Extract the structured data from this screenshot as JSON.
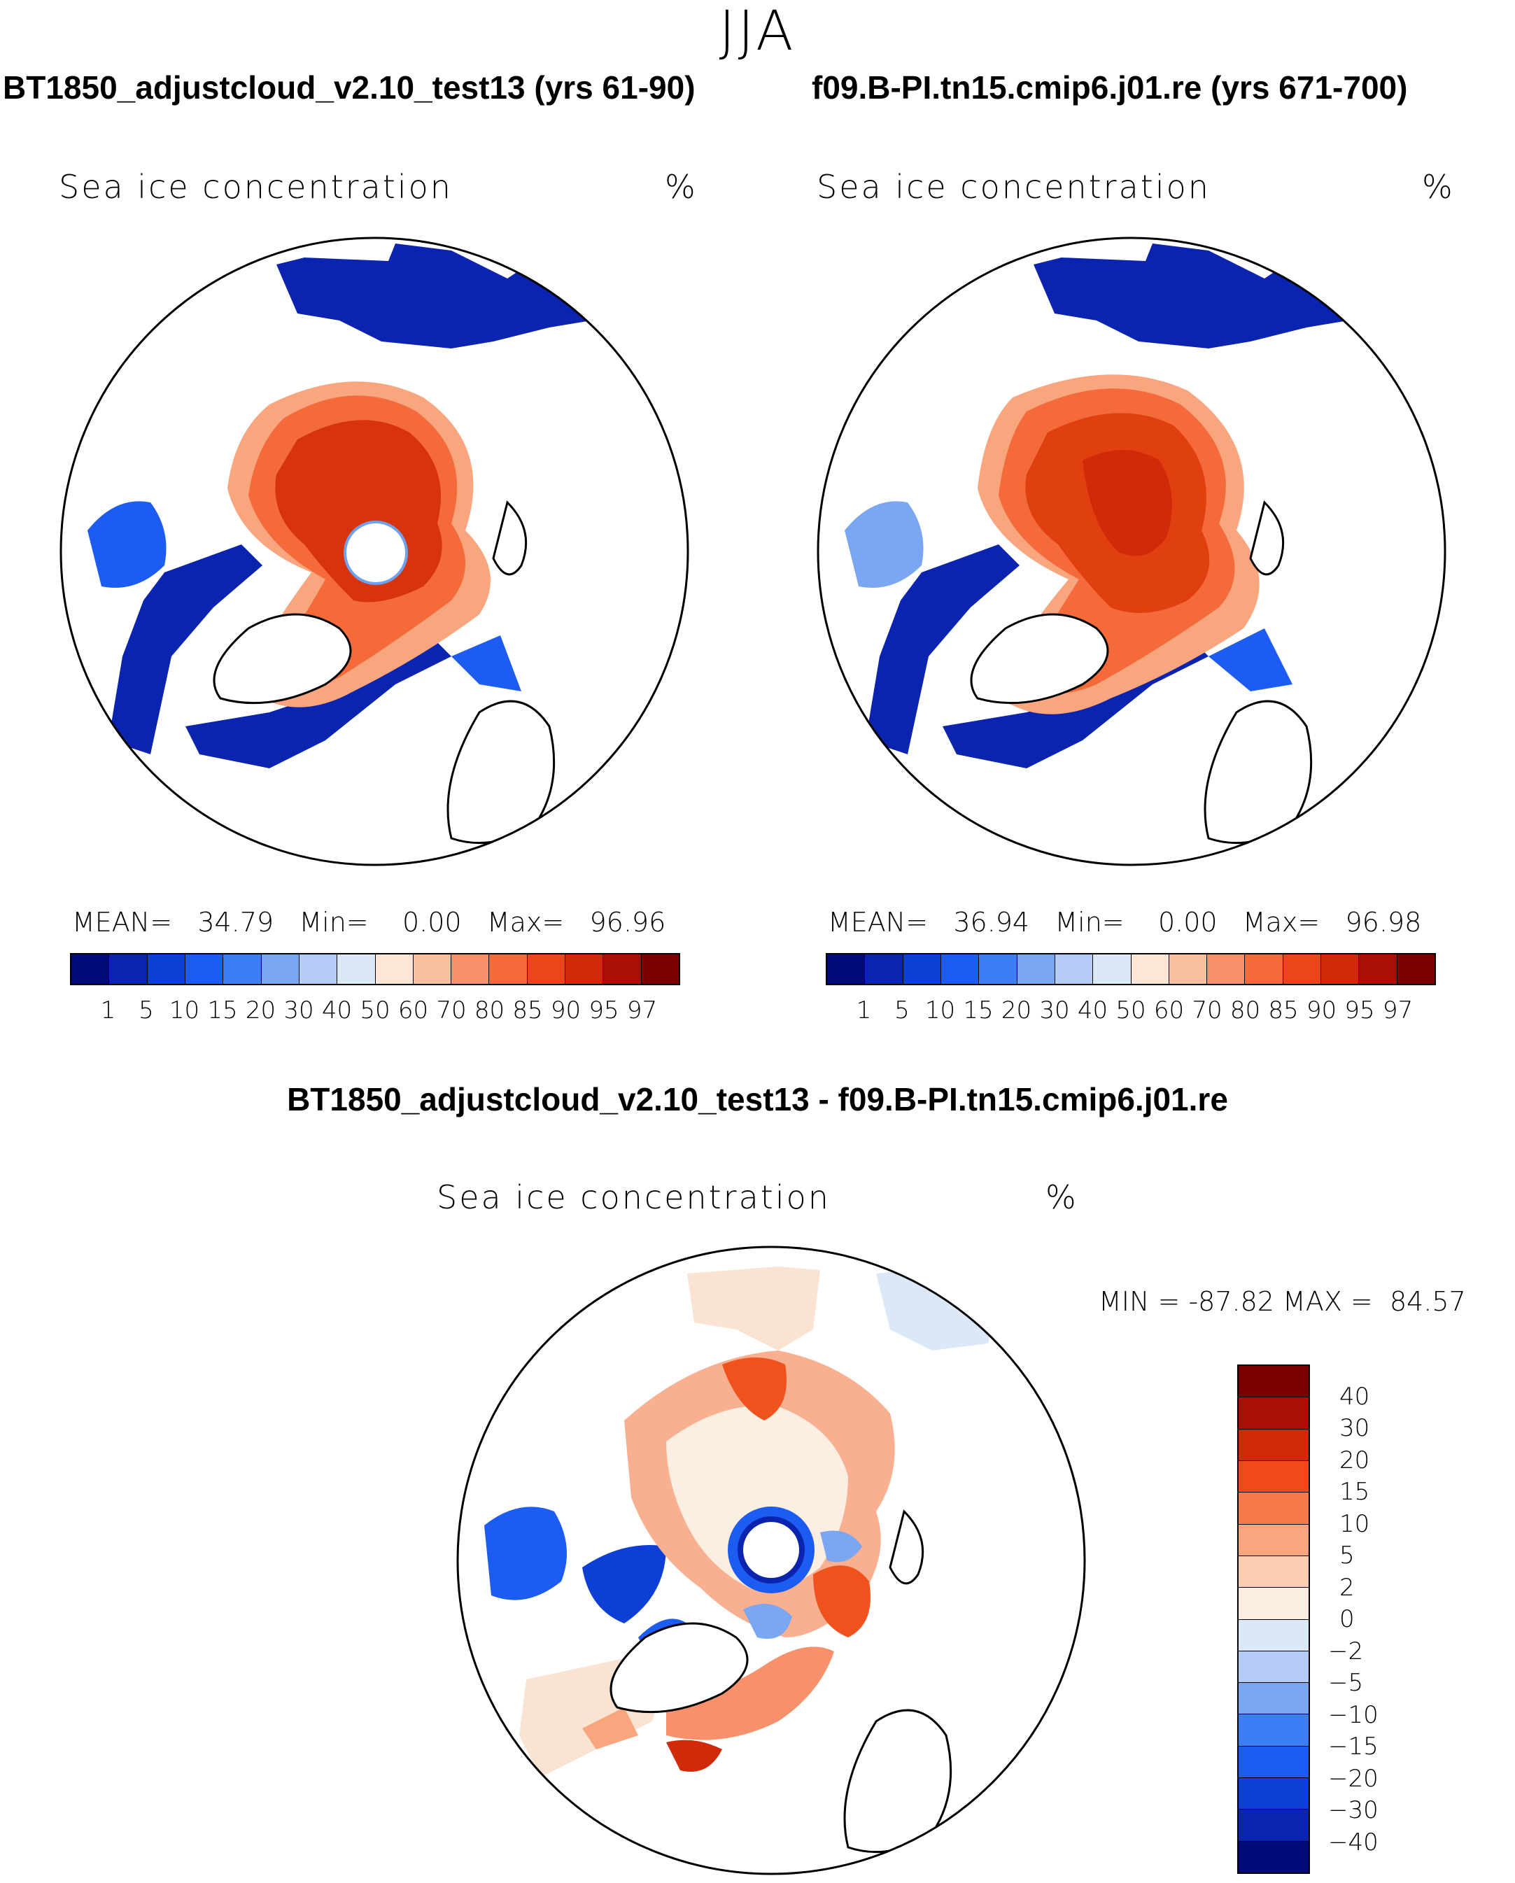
{
  "season": "JJA",
  "panels": [
    {
      "title": "BT1850_adjustcloud_v2.10_test13 (yrs 61-90)",
      "variable": "Sea ice concentration",
      "units": "%",
      "mean_label": "MEAN=",
      "mean": "34.79",
      "min_label": "Min=",
      "min": "0.00",
      "max_label": "Max=",
      "max": "96.96"
    },
    {
      "title": "f09.B-PI.tn15.cmip6.j01.re (yrs 671-700)",
      "variable": "Sea ice concentration",
      "units": "%",
      "mean_label": "MEAN=",
      "mean": "36.94",
      "min_label": "Min=",
      "min": "0.00",
      "max_label": "Max=",
      "max": "96.98"
    }
  ],
  "diff": {
    "title": "BT1850_adjustcloud_v2.10_test13 - f09.B-PI.tn15.cmip6.j01.re",
    "variable": "Sea ice concentration",
    "units": "%",
    "min_label": "MIN =",
    "min": "-87.82",
    "max_label": "MAX =",
    "max": "84.57"
  },
  "chart_data": [
    {
      "type": "heatmap",
      "projection": "north polar stereographic",
      "title": "BT1850_adjustcloud_v2.10_test13 (yrs 61-90)",
      "colorbar_levels": [
        "1",
        "5",
        "10",
        "15",
        "20",
        "30",
        "40",
        "50",
        "60",
        "70",
        "80",
        "85",
        "90",
        "95",
        "97"
      ],
      "colors": [
        "#000a7a",
        "#0a24b0",
        "#0d3fd6",
        "#1c5cf0",
        "#3d7ef5",
        "#7aa6f2",
        "#b5ccf6",
        "#dbe8f8",
        "#fde6d6",
        "#f9c0a0",
        "#f6916c",
        "#f46a3a",
        "#e9461c",
        "#d02a0a",
        "#a90f04",
        "#7a0000"
      ],
      "mean": 34.79,
      "min": 0.0,
      "max": 96.96
    },
    {
      "type": "heatmap",
      "projection": "north polar stereographic",
      "title": "f09.B-PI.tn15.cmip6.j01.re (yrs 671-700)",
      "colorbar_levels": [
        "1",
        "5",
        "10",
        "15",
        "20",
        "30",
        "40",
        "50",
        "60",
        "70",
        "80",
        "85",
        "90",
        "95",
        "97"
      ],
      "colors": [
        "#000a7a",
        "#0a24b0",
        "#0d3fd6",
        "#1c5cf0",
        "#3d7ef5",
        "#7aa6f2",
        "#b5ccf6",
        "#dbe8f8",
        "#fde6d6",
        "#f9c0a0",
        "#f6916c",
        "#f46a3a",
        "#e9461c",
        "#d02a0a",
        "#a90f04",
        "#7a0000"
      ],
      "mean": 36.94,
      "min": 0.0,
      "max": 96.98
    },
    {
      "type": "heatmap",
      "projection": "north polar stereographic",
      "title": "BT1850_adjustcloud_v2.10_test13 - f09.B-PI.tn15.cmip6.j01.re",
      "colorbar_levels": [
        "40",
        "30",
        "20",
        "15",
        "10",
        "5",
        "2",
        "0",
        "−2",
        "−5",
        "−10",
        "−15",
        "−20",
        "−30",
        "−40"
      ],
      "colors": [
        "#7a0000",
        "#a90f04",
        "#d02a0a",
        "#f04a1a",
        "#f6794a",
        "#f9a67e",
        "#fbcdb2",
        "#fdeee2",
        "#dbe8f8",
        "#b5ccf6",
        "#7aa6f2",
        "#3d7ef5",
        "#1c5cf0",
        "#0d3fd6",
        "#0a24b0",
        "#000a7a"
      ],
      "min": -87.82,
      "max": 84.57
    }
  ]
}
